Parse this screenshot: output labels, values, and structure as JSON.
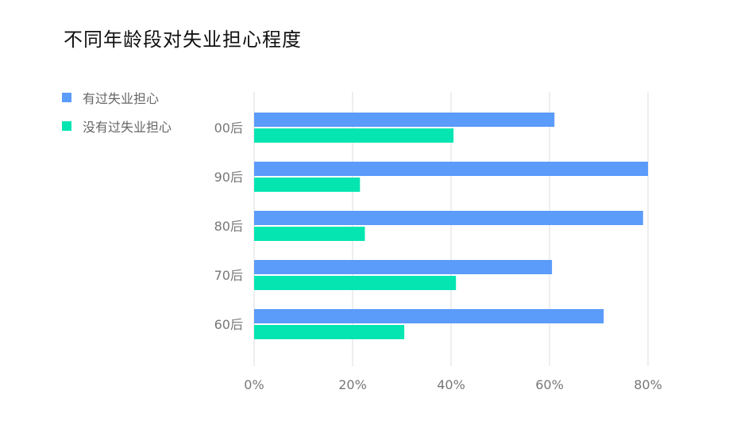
{
  "chart_data": {
    "type": "bar",
    "orientation": "horizontal",
    "title": "不同年龄段对失业担心程度",
    "categories": [
      "00后",
      "90后",
      "80后",
      "70后",
      "60后"
    ],
    "series": [
      {
        "name": "有过失业担心",
        "color": "#5B9BFA",
        "values": [
          61,
          80,
          79,
          60.5,
          71
        ]
      },
      {
        "name": "没有过失业担心",
        "color": "#04E5B2",
        "values": [
          40.5,
          21.5,
          22.5,
          41,
          30.5
        ]
      }
    ],
    "x_ticks": [
      "0%",
      "20%",
      "40%",
      "60%",
      "80%"
    ],
    "xlim": [
      0,
      80
    ],
    "xlabel": "",
    "ylabel": "",
    "grid": true,
    "legend_position": "top-left"
  }
}
